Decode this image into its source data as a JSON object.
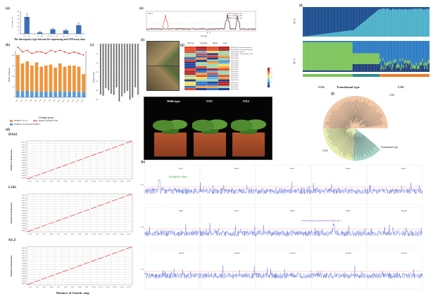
{
  "panels": {
    "a": {
      "letter": "(a)",
      "caption": "The discrepancy type between Re-sequencing and SNP array data",
      "ylabel": "Percentage (%)",
      "yticks": [
        "0",
        "10",
        "20",
        "30",
        "40",
        "50",
        "60"
      ],
      "categories": [
        "0/1 → 0/0",
        "1/1 → 0/0",
        "0/0 or 1/1 → 0/1",
        "0/0 → 1/1",
        "0/1 → 1/1"
      ],
      "values": [
        45,
        4,
        12,
        9,
        23
      ],
      "errors": [
        8,
        2,
        3,
        3,
        6
      ],
      "bar_color": "#3b6fb6"
    },
    "b": {
      "letter": "(b)",
      "ylabel": "Number of Markers",
      "xlabel": "Linkage group",
      "y2label": "Density (Marker/cM)",
      "categories": [
        "LG1",
        "LG2",
        "LG3",
        "LG4",
        "LG5",
        "LG6",
        "LG7",
        "LG8",
        "LG9",
        "LG10",
        "LG11",
        "LG12",
        "LG13",
        "LG14",
        "LG15"
      ],
      "orange_values": [
        200,
        160,
        170,
        150,
        165,
        145,
        150,
        155,
        140,
        160,
        145,
        150,
        150,
        145,
        110
      ],
      "blue_values": [
        30,
        28,
        30,
        27,
        28,
        26,
        27,
        28,
        26,
        28,
        27,
        27,
        28,
        26,
        24
      ],
      "density": [
        12,
        9,
        10,
        8,
        9,
        9,
        8,
        10,
        9,
        10,
        9,
        8,
        9,
        8,
        7
      ],
      "legend": [
        "Number of CS",
        "Density (Marker/cM)",
        "Number of previous markers"
      ],
      "colors": {
        "orange": "#f0953a",
        "blue": "#5b9bd5",
        "red": "#d4261e"
      }
    },
    "c": {
      "letter": "(c)",
      "ylabel": "Distance (cM)"
    },
    "d": {
      "letter": "(d)",
      "maps": [
        {
          "name": "DAS2"
        },
        {
          "name": "LJ43"
        },
        {
          "name": "NCZ"
        }
      ],
      "chromosomes": [
        "Chr15",
        "Chr14",
        "Chr13",
        "Chr12",
        "Chr11",
        "Chr10",
        "Chr09",
        "Chr08",
        "Chr07",
        "Chr06",
        "Chr05",
        "Chr04",
        "Chr03",
        "Chr02",
        "Chr01"
      ],
      "lgs": [
        "LG1",
        "LG2",
        "LG3",
        "LG4",
        "LG5",
        "LG6",
        "LG7",
        "LG8",
        "LG9",
        "LG10",
        "LG11",
        "LG12",
        "LG13",
        "LG14",
        "LG15"
      ],
      "ylabel": "Position of chromosomes",
      "xlabel": "Distance of Genetic map"
    },
    "e": {
      "letter": "(e)",
      "tag": "LG11",
      "legend": [
        "Shanghai_2019",
        "Shanghai_2020",
        "Shanghai_2021"
      ],
      "xlabel": "Chr mb",
      "colors": [
        "#d4261e",
        "#888888",
        "#333333"
      ]
    },
    "f": {
      "letter": "(f)"
    },
    "g": {
      "letter": "(g)",
      "columns": [
        "Wild type",
        "Transgenic",
        "Mutant",
        "Field"
      ],
      "gene_labels": [
        "Phe011001 / Unknown protein",
        "Phe011002 / Chloroplast protein",
        "Phe011003 / Kinase",
        "Phe011004 / Transcription factor",
        "Phe011005",
        "Phe011006",
        "Phe011007",
        "Phe011008",
        "Phe011009",
        "Phe011010",
        "Phe011011",
        "Phe011012",
        "Phe011013",
        "Phe011014",
        "Phe011015",
        "Phe011016",
        "Phe011017",
        "Phe011018",
        "Phe011019",
        "Phe011020"
      ],
      "scale": [
        "2.0",
        "1.5",
        "1.0",
        "0.5",
        "0"
      ]
    },
    "h": {
      "letter": "(h)",
      "labels": [
        "Wild type",
        "OX1",
        "OX2"
      ]
    },
    "i": {
      "letter": "(i)",
      "k_labels": [
        "K=2",
        "K=3"
      ],
      "groups": [
        "CSA",
        "Transitional type",
        "CSS"
      ]
    },
    "j": {
      "letter": "(j)",
      "groups": [
        "CSS",
        "CSA",
        "Transitional type"
      ],
      "colors": {
        "CSS": "#f2c9a8",
        "CSA": "#e8edb0",
        "Transitional": "#a8d5c8"
      }
    },
    "k": {
      "letter": "(k)",
      "ylabel": "Fst",
      "lgs": [
        "LG1",
        "LG2",
        "LG3",
        "LG4",
        "LG5",
        "LG6",
        "LG7",
        "LG8",
        "LG9",
        "LG10",
        "LG11",
        "LG12",
        "LG13",
        "LG14",
        "LG15"
      ],
      "annot1": "Ecological coflux",
      "annot2": "Ocular Receptor protein kinase (RLK) like 1"
    }
  }
}
